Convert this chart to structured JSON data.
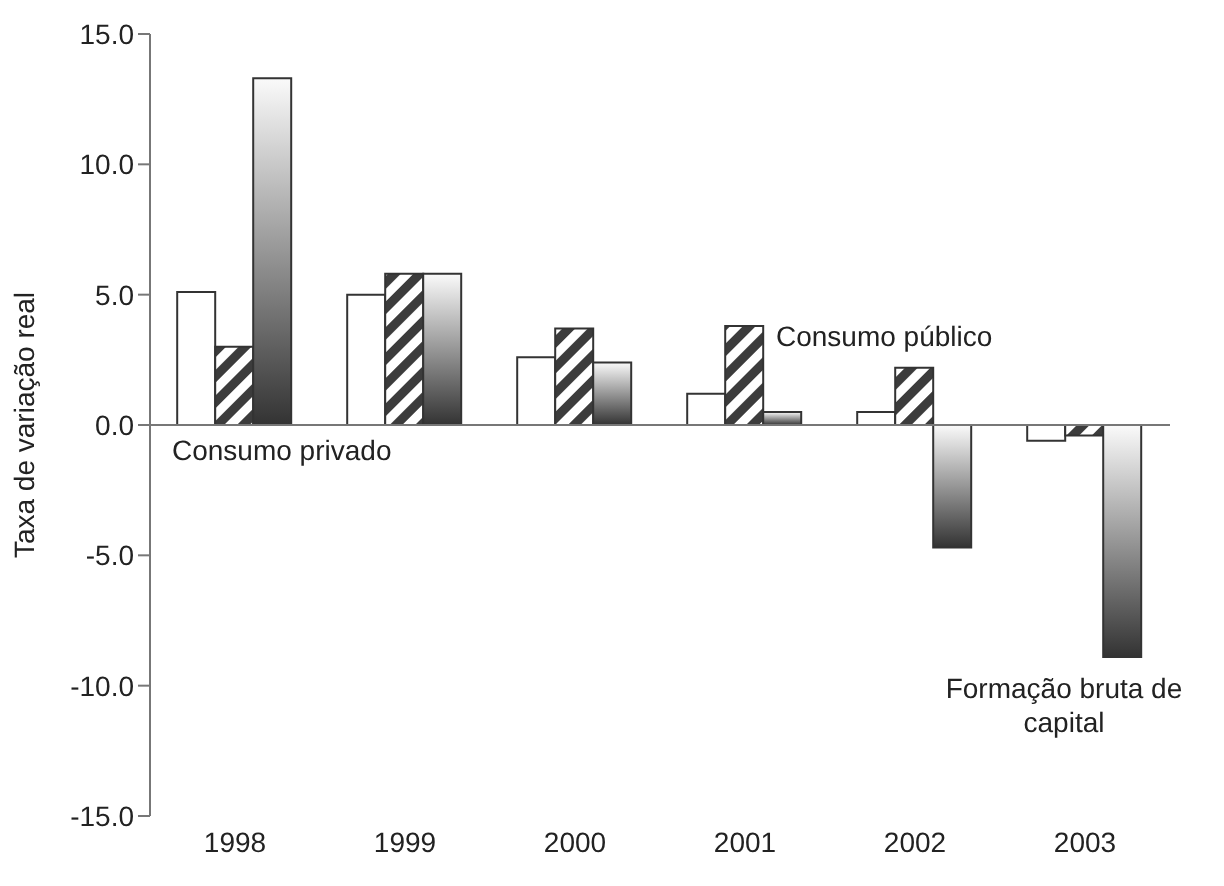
{
  "chart_data": {
    "type": "bar",
    "ylabel": "Taxa de variação real",
    "categories": [
      "1998",
      "1999",
      "2000",
      "2001",
      "2002",
      "2003"
    ],
    "series": [
      {
        "name": "Consumo privado",
        "color": "#ffffff",
        "values": [
          5.1,
          5.0,
          2.6,
          1.2,
          0.5,
          -0.6
        ]
      },
      {
        "name": "Consumo público",
        "color": "#3c3c3c",
        "values": [
          3.0,
          5.8,
          3.7,
          3.8,
          2.2,
          -0.4
        ]
      },
      {
        "name": "Formação bruta de capital",
        "color": "#333333",
        "values": [
          13.3,
          5.8,
          2.4,
          0.5,
          -4.7,
          -8.9
        ]
      }
    ],
    "ylim": [
      -15,
      15
    ],
    "yticks": [
      {
        "value": -15,
        "label": "-15.0"
      },
      {
        "value": -10,
        "label": "-10.0"
      },
      {
        "value": -5,
        "label": "-5.0"
      },
      {
        "value": 0,
        "label": "0.0"
      },
      {
        "value": 5,
        "label": "5.0"
      },
      {
        "value": 10,
        "label": "10.0"
      },
      {
        "value": 15,
        "label": "15.0"
      }
    ],
    "ref_lines": [
      {
        "axis": "y",
        "value": 0
      }
    ],
    "grid": false,
    "legend": false
  }
}
